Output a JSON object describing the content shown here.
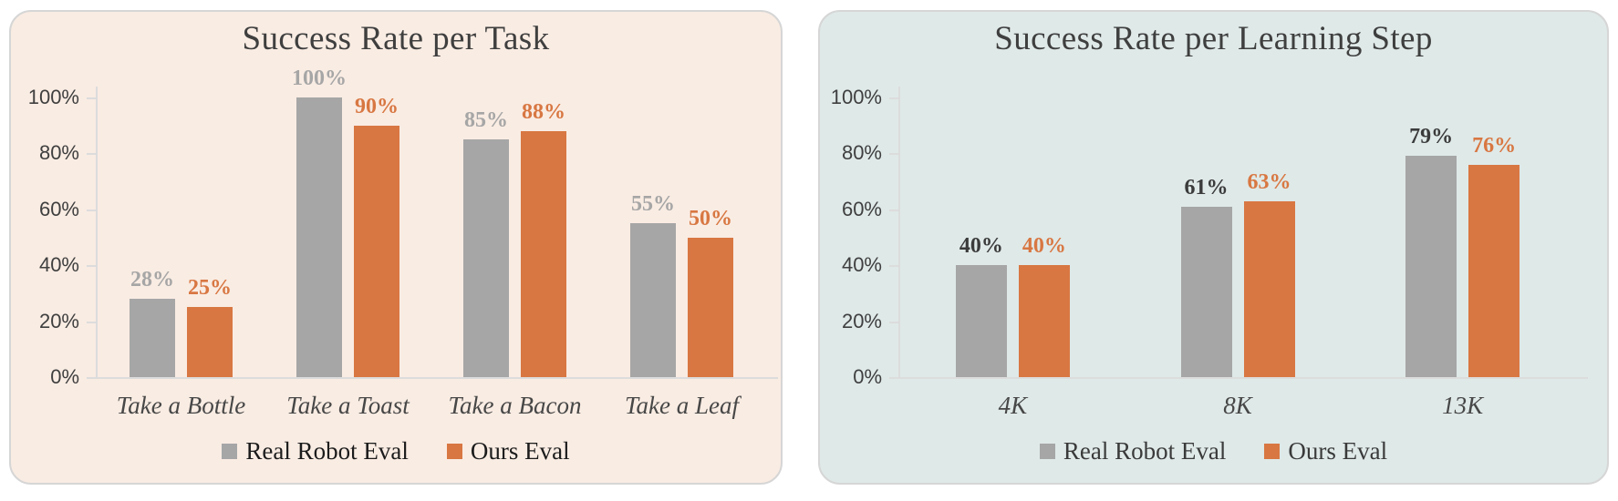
{
  "page": {
    "background": "#FFFFFF"
  },
  "chart_data": [
    {
      "type": "bar",
      "title": "Success Rate per Task",
      "panel_bg": "#F9ECE3",
      "categories": [
        "Take a Bottle",
        "Take a Toast",
        "Take a Bacon",
        "Take a Leaf"
      ],
      "series": [
        {
          "name": "Real Robot Eval",
          "color": "#A6A6A6",
          "label_color": "#A6A6A6",
          "values": [
            28,
            100,
            85,
            55
          ],
          "labels": [
            "28%",
            "100%",
            "85%",
            "55%"
          ]
        },
        {
          "name": "Ours Eval",
          "color": "#D87742",
          "label_color": "#D87742",
          "values": [
            25,
            90,
            88,
            50
          ],
          "labels": [
            "25%",
            "90%",
            "88%",
            "50%"
          ]
        }
      ],
      "y_axis": {
        "range": [
          0,
          100
        ],
        "ticks": [
          {
            "label": "0%",
            "value": 0
          },
          {
            "label": "20%",
            "value": 20
          },
          {
            "label": "40%",
            "value": 40
          },
          {
            "label": "60%",
            "value": 60
          },
          {
            "label": "80%",
            "value": 80
          },
          {
            "label": "100%",
            "value": 100
          }
        ]
      },
      "grid": false,
      "legend_position": "bottom",
      "legend_text_color": "#1c1c1c"
    },
    {
      "type": "bar",
      "title": "Success Rate per Learning Step",
      "panel_bg": "#DFE9E8",
      "categories": [
        "4K",
        "8K",
        "13K"
      ],
      "series": [
        {
          "name": "Real Robot Eval",
          "color": "#A6A6A6",
          "label_color": "#3B3B3B",
          "values": [
            40,
            61,
            79
          ],
          "labels": [
            "40%",
            "61%",
            "79%"
          ]
        },
        {
          "name": "Ours Eval",
          "color": "#D87742",
          "label_color": "#D87742",
          "values": [
            40,
            63,
            76
          ],
          "labels": [
            "40%",
            "63%",
            "76%"
          ]
        }
      ],
      "y_axis": {
        "range": [
          0,
          100
        ],
        "ticks": [
          {
            "label": "0%",
            "value": 0
          },
          {
            "label": "20%",
            "value": 20
          },
          {
            "label": "40%",
            "value": 40
          },
          {
            "label": "60%",
            "value": 60
          },
          {
            "label": "80%",
            "value": 80
          },
          {
            "label": "100%",
            "value": 100
          }
        ]
      },
      "grid": false,
      "legend_position": "bottom",
      "legend_text_color": "#3a3a3a"
    }
  ]
}
